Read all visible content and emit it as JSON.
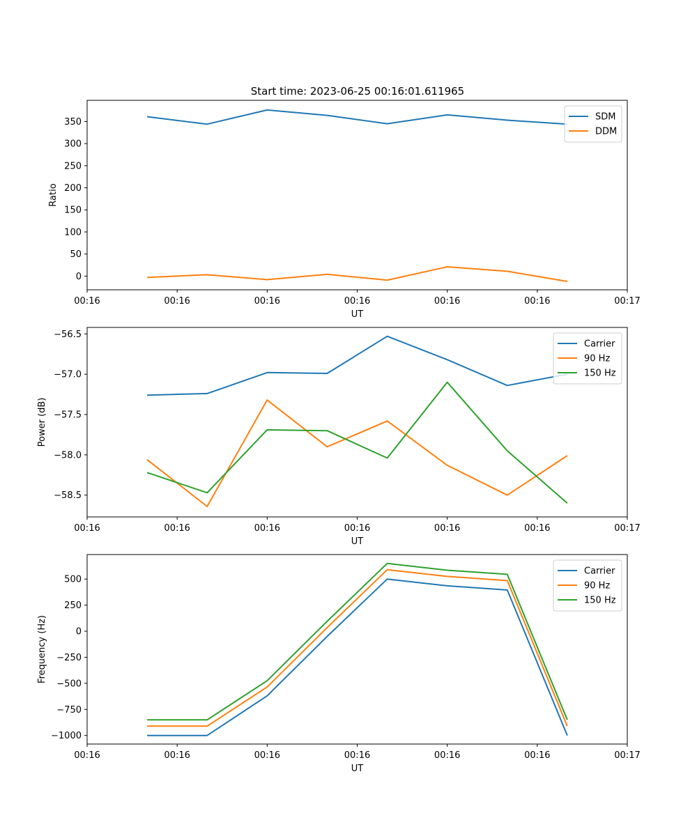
{
  "figure": {
    "title": "Start time: 2023-06-25 00:16:01.611965"
  },
  "chart_data": [
    {
      "type": "line",
      "xlabel": "UT",
      "ylabel": "Ratio",
      "x": [
        1,
        2,
        3,
        4,
        5,
        6,
        7,
        8
      ],
      "xlim": [
        0,
        9
      ],
      "xticks": [
        0,
        1.5,
        3,
        4.5,
        6,
        7.5,
        9
      ],
      "xtick_labels": [
        "00:16",
        "00:16",
        "00:16",
        "00:16",
        "00:16",
        "00:16",
        "00:17"
      ],
      "ylim": [
        -31,
        398
      ],
      "yticks": [
        0,
        50,
        100,
        150,
        200,
        250,
        300,
        350
      ],
      "ytick_labels": [
        "0",
        "50",
        "100",
        "150",
        "200",
        "250",
        "300",
        "350"
      ],
      "legend_position": "top-right",
      "series": [
        {
          "name": "SDM",
          "color": "#1f77b4",
          "values": [
            361,
            344,
            376,
            364,
            345,
            365,
            353,
            344
          ]
        },
        {
          "name": "DDM",
          "color": "#ff7f0e",
          "values": [
            -3,
            3,
            -8,
            4,
            -9,
            21,
            11,
            -12
          ]
        }
      ]
    },
    {
      "type": "line",
      "xlabel": "UT",
      "ylabel": "Power (dB)",
      "x": [
        1,
        2,
        3,
        4,
        5,
        6,
        7,
        8
      ],
      "xlim": [
        0,
        9
      ],
      "xticks": [
        0,
        1.5,
        3,
        4.5,
        6,
        7.5,
        9
      ],
      "xtick_labels": [
        "00:16",
        "00:16",
        "00:16",
        "00:16",
        "00:16",
        "00:16",
        "00:17"
      ],
      "ylim": [
        -58.77,
        -56.42
      ],
      "yticks": [
        -58.5,
        -58.0,
        -57.5,
        -57.0,
        -56.5
      ],
      "ytick_labels": [
        "−58.5",
        "−58.0",
        "−57.5",
        "−57.0",
        "−56.5"
      ],
      "legend_position": "top-right",
      "series": [
        {
          "name": "Carrier",
          "color": "#1f77b4",
          "values": [
            -57.26,
            -57.24,
            -56.98,
            -56.99,
            -56.53,
            -56.82,
            -57.14,
            -57.0
          ]
        },
        {
          "name": "90 Hz",
          "color": "#ff7f0e",
          "values": [
            -58.06,
            -58.64,
            -57.32,
            -57.9,
            -57.58,
            -58.13,
            -58.5,
            -58.01
          ]
        },
        {
          "name": "150 Hz",
          "color": "#2ca02c",
          "values": [
            -58.22,
            -58.47,
            -57.69,
            -57.7,
            -58.04,
            -57.1,
            -57.95,
            -58.6
          ]
        }
      ]
    },
    {
      "type": "line",
      "xlabel": "UT",
      "ylabel": "Frequency (Hz)",
      "x": [
        1,
        2,
        3,
        4,
        5,
        6,
        7,
        8
      ],
      "xlim": [
        0,
        9
      ],
      "xticks": [
        0,
        1.5,
        3,
        4.5,
        6,
        7.5,
        9
      ],
      "xtick_labels": [
        "00:16",
        "00:16",
        "00:16",
        "00:16",
        "00:16",
        "00:16",
        "00:17"
      ],
      "ylim": [
        -1082,
        735
      ],
      "yticks": [
        -1000,
        -750,
        -500,
        -250,
        0,
        250,
        500
      ],
      "ytick_labels": [
        "−1000",
        "−750",
        "−500",
        "−250",
        "0",
        "250",
        "500"
      ],
      "legend_position": "top-right",
      "series": [
        {
          "name": "Carrier",
          "color": "#1f77b4",
          "values": [
            -1000,
            -1000,
            -620,
            -50,
            500,
            435,
            395,
            -1000
          ]
        },
        {
          "name": "90 Hz",
          "color": "#ff7f0e",
          "values": [
            -910,
            -910,
            -535,
            35,
            590,
            525,
            485,
            -910
          ]
        },
        {
          "name": "150 Hz",
          "color": "#2ca02c",
          "values": [
            -850,
            -850,
            -475,
            95,
            650,
            585,
            545,
            -850
          ]
        }
      ]
    }
  ]
}
